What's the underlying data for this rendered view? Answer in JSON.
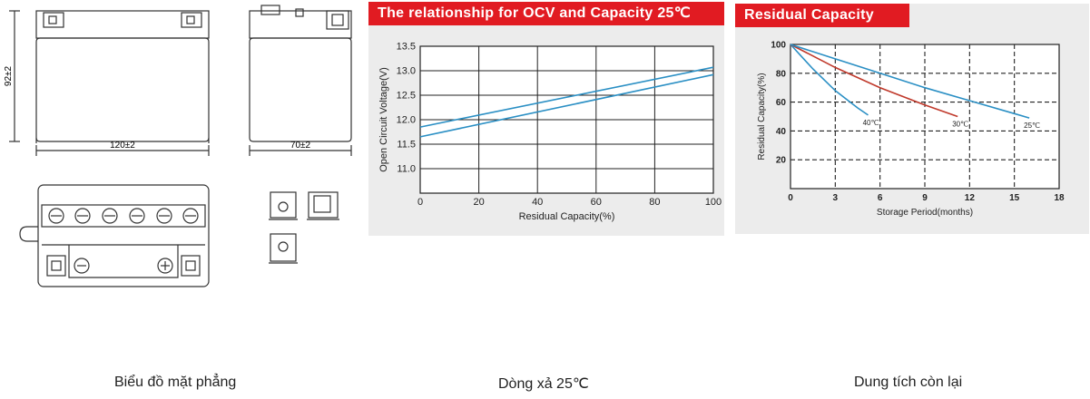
{
  "drawing": {
    "dim_width": "120±2",
    "dim_height": "92±2",
    "dim_depth": "70±2"
  },
  "captions": {
    "drawing": "Biểu đồ mặt phẳng",
    "ocv": "Dòng xả 25℃",
    "residual": "Dung tích còn lại"
  },
  "chart_data": [
    {
      "type": "line",
      "title": "The relationship for OCV and Capacity 25℃",
      "xlabel": "Residual Capacity(%)",
      "ylabel": "Open Circuit Voltage(V)",
      "xlim": [
        0,
        100
      ],
      "ylim": [
        10.5,
        13.5
      ],
      "xticks": [
        0,
        20,
        40,
        60,
        80,
        100
      ],
      "yticks": [
        11.0,
        11.5,
        12.0,
        12.5,
        13.0,
        13.5
      ],
      "grid": true,
      "line_color": "#2a8fc4",
      "series": [
        {
          "x": [
            0,
            100
          ],
          "values": [
            11.85,
            13.07
          ]
        },
        {
          "x": [
            0,
            100
          ],
          "values": [
            11.65,
            12.92
          ]
        }
      ]
    },
    {
      "type": "line",
      "title": "Residual Capacity",
      "xlabel": "Storage Period(months)",
      "ylabel": "Residual Capacity(%)",
      "xlim": [
        0,
        18
      ],
      "ylim": [
        0,
        100
      ],
      "xticks": [
        0,
        3,
        6,
        9,
        12,
        15,
        18
      ],
      "yticks": [
        20,
        40,
        60,
        80,
        100
      ],
      "grid": true,
      "series": [
        {
          "name": "40℃",
          "color": "#2a8fc4",
          "x": [
            0,
            1.5,
            3,
            4.5,
            5.2
          ],
          "values": [
            100,
            83,
            68,
            56,
            51
          ]
        },
        {
          "name": "30℃",
          "color": "#c0392b",
          "x": [
            0,
            3,
            6,
            9,
            11.2
          ],
          "values": [
            100,
            84,
            70,
            58,
            50
          ]
        },
        {
          "name": "25℃",
          "color": "#2a8fc4",
          "x": [
            0,
            3,
            6,
            9,
            12,
            15,
            16
          ],
          "values": [
            100,
            90,
            80,
            70,
            61,
            52,
            49
          ]
        }
      ]
    }
  ]
}
